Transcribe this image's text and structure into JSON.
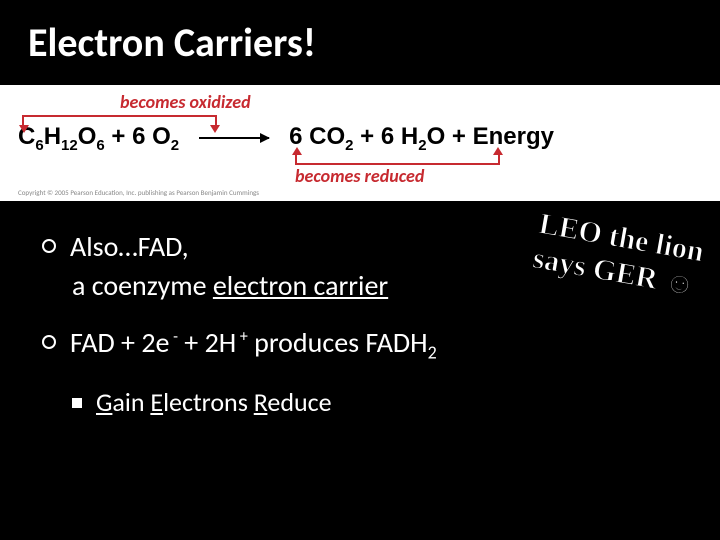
{
  "title": "Electron Carriers!",
  "equation_box": {
    "label_top": "becomes oxidized",
    "label_bottom": "becomes reduced",
    "formula_parts": {
      "r1": "C",
      "r1s1": "6",
      "r1m": "H",
      "r1s2": "12",
      "r1e": "O",
      "r1s3": "6",
      "plus1": "  +  ",
      "r2": "6 O",
      "r2s": "2",
      "p1": "6 CO",
      "p1s": "2",
      "plus2": "  +  ",
      "p2": "6 H",
      "p2s": "2",
      "p2e": "O",
      "plus3": "  +  Energy"
    },
    "copyright": "Copyright © 2005 Pearson Education, Inc. publishing as Pearson Benjamin Cummings"
  },
  "bullets": {
    "b1_a": "Also…FAD,",
    "b1_b_pre": "a coenzyme ",
    "b1_b_underline": "electron carrier",
    "b2_pre": "FAD  + 2e",
    "b2_sup1": " -",
    "b2_mid": " + 2H",
    "b2_sup2": " +",
    "b2_mid2": " produces FADH",
    "b2_sub": "2",
    "sub_g": "G",
    "sub_ain": "ain ",
    "sub_e": "E",
    "sub_lectrons": "lectrons ",
    "sub_r": "R",
    "sub_educe": "educe"
  },
  "mnemonic": {
    "line1": "LEO the lion",
    "line2": "says GER ☺"
  }
}
